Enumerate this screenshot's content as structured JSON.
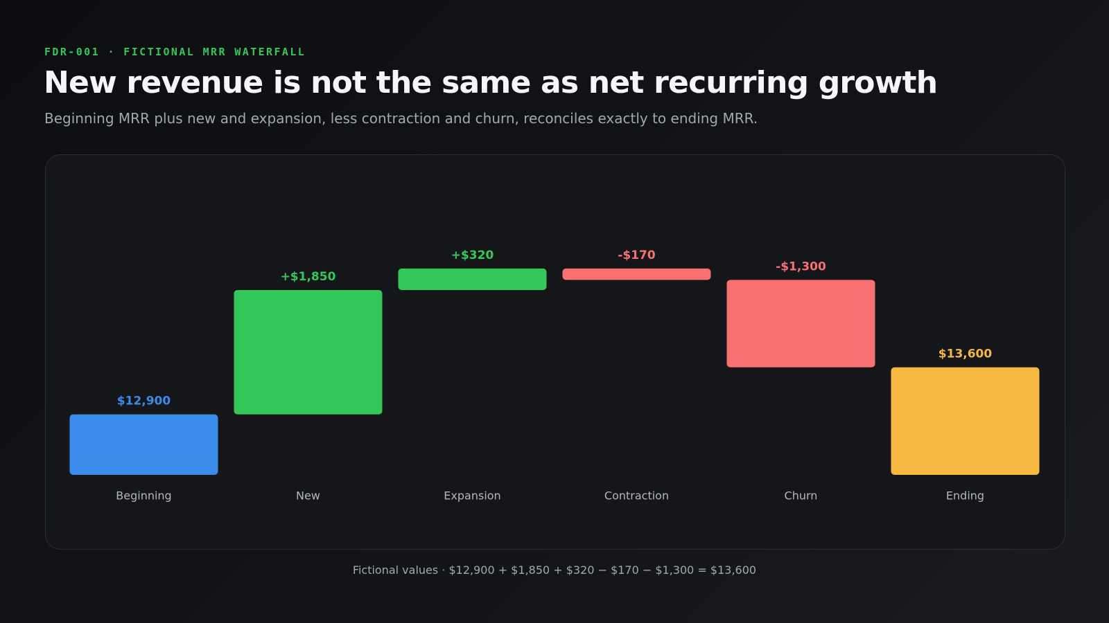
{
  "kicker": "FDR-001 · FICTIONAL MRR WATERFALL",
  "chart_data": {
    "type": "waterfall",
    "title": "New revenue is not the same as net recurring growth",
    "subtitle": "Beginning MRR plus new and expansion, less contraction and churn, reconciles exactly to ending MRR.",
    "categories": [
      "Beginning",
      "New",
      "Expansion",
      "Contraction",
      "Churn",
      "Ending"
    ],
    "values": [
      12900,
      1850,
      320,
      -170,
      -1300,
      13600
    ],
    "value_labels": [
      "$12,900",
      "+$1,850",
      "+$320",
      "-$170",
      "-$1,300",
      "$13,600"
    ],
    "measure": [
      "absolute",
      "relative",
      "relative",
      "relative",
      "relative",
      "total"
    ],
    "colors": [
      "#3b8beb",
      "#34c759",
      "#34c759",
      "#f87171",
      "#f87171",
      "#f5b942"
    ],
    "ylim": [
      12000,
      16500
    ]
  },
  "footnote": "Fictional values · $12,900 + $1,850 + $320 − $170 − $1,300 = $13,600"
}
